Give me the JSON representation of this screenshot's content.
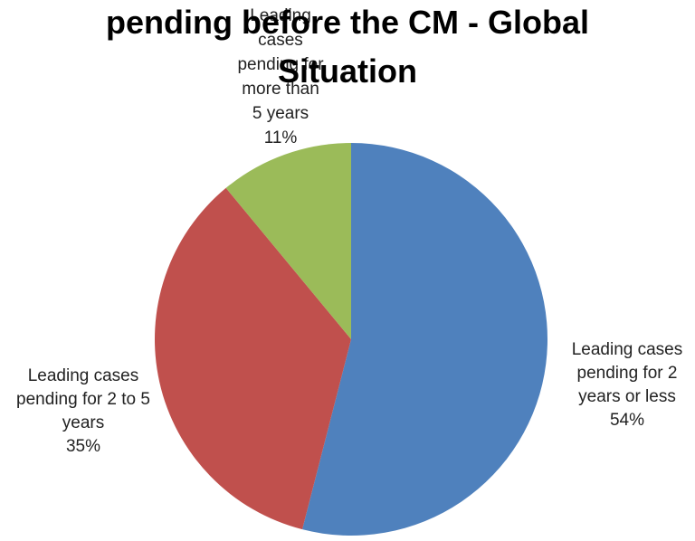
{
  "chart_data": {
    "type": "pie",
    "title": "pending before the CM - Global Situation",
    "categories": [
      "Leading cases pending for 2 years or less",
      "Leading cases pending for 2 to 5 years",
      "Leading cases pending for more than 5 years"
    ],
    "values": [
      54,
      35,
      11
    ],
    "value_labels": [
      "54%",
      "35%",
      "11%"
    ],
    "colors": [
      "#4F81BD",
      "#C0504D",
      "#9BBB59"
    ]
  }
}
